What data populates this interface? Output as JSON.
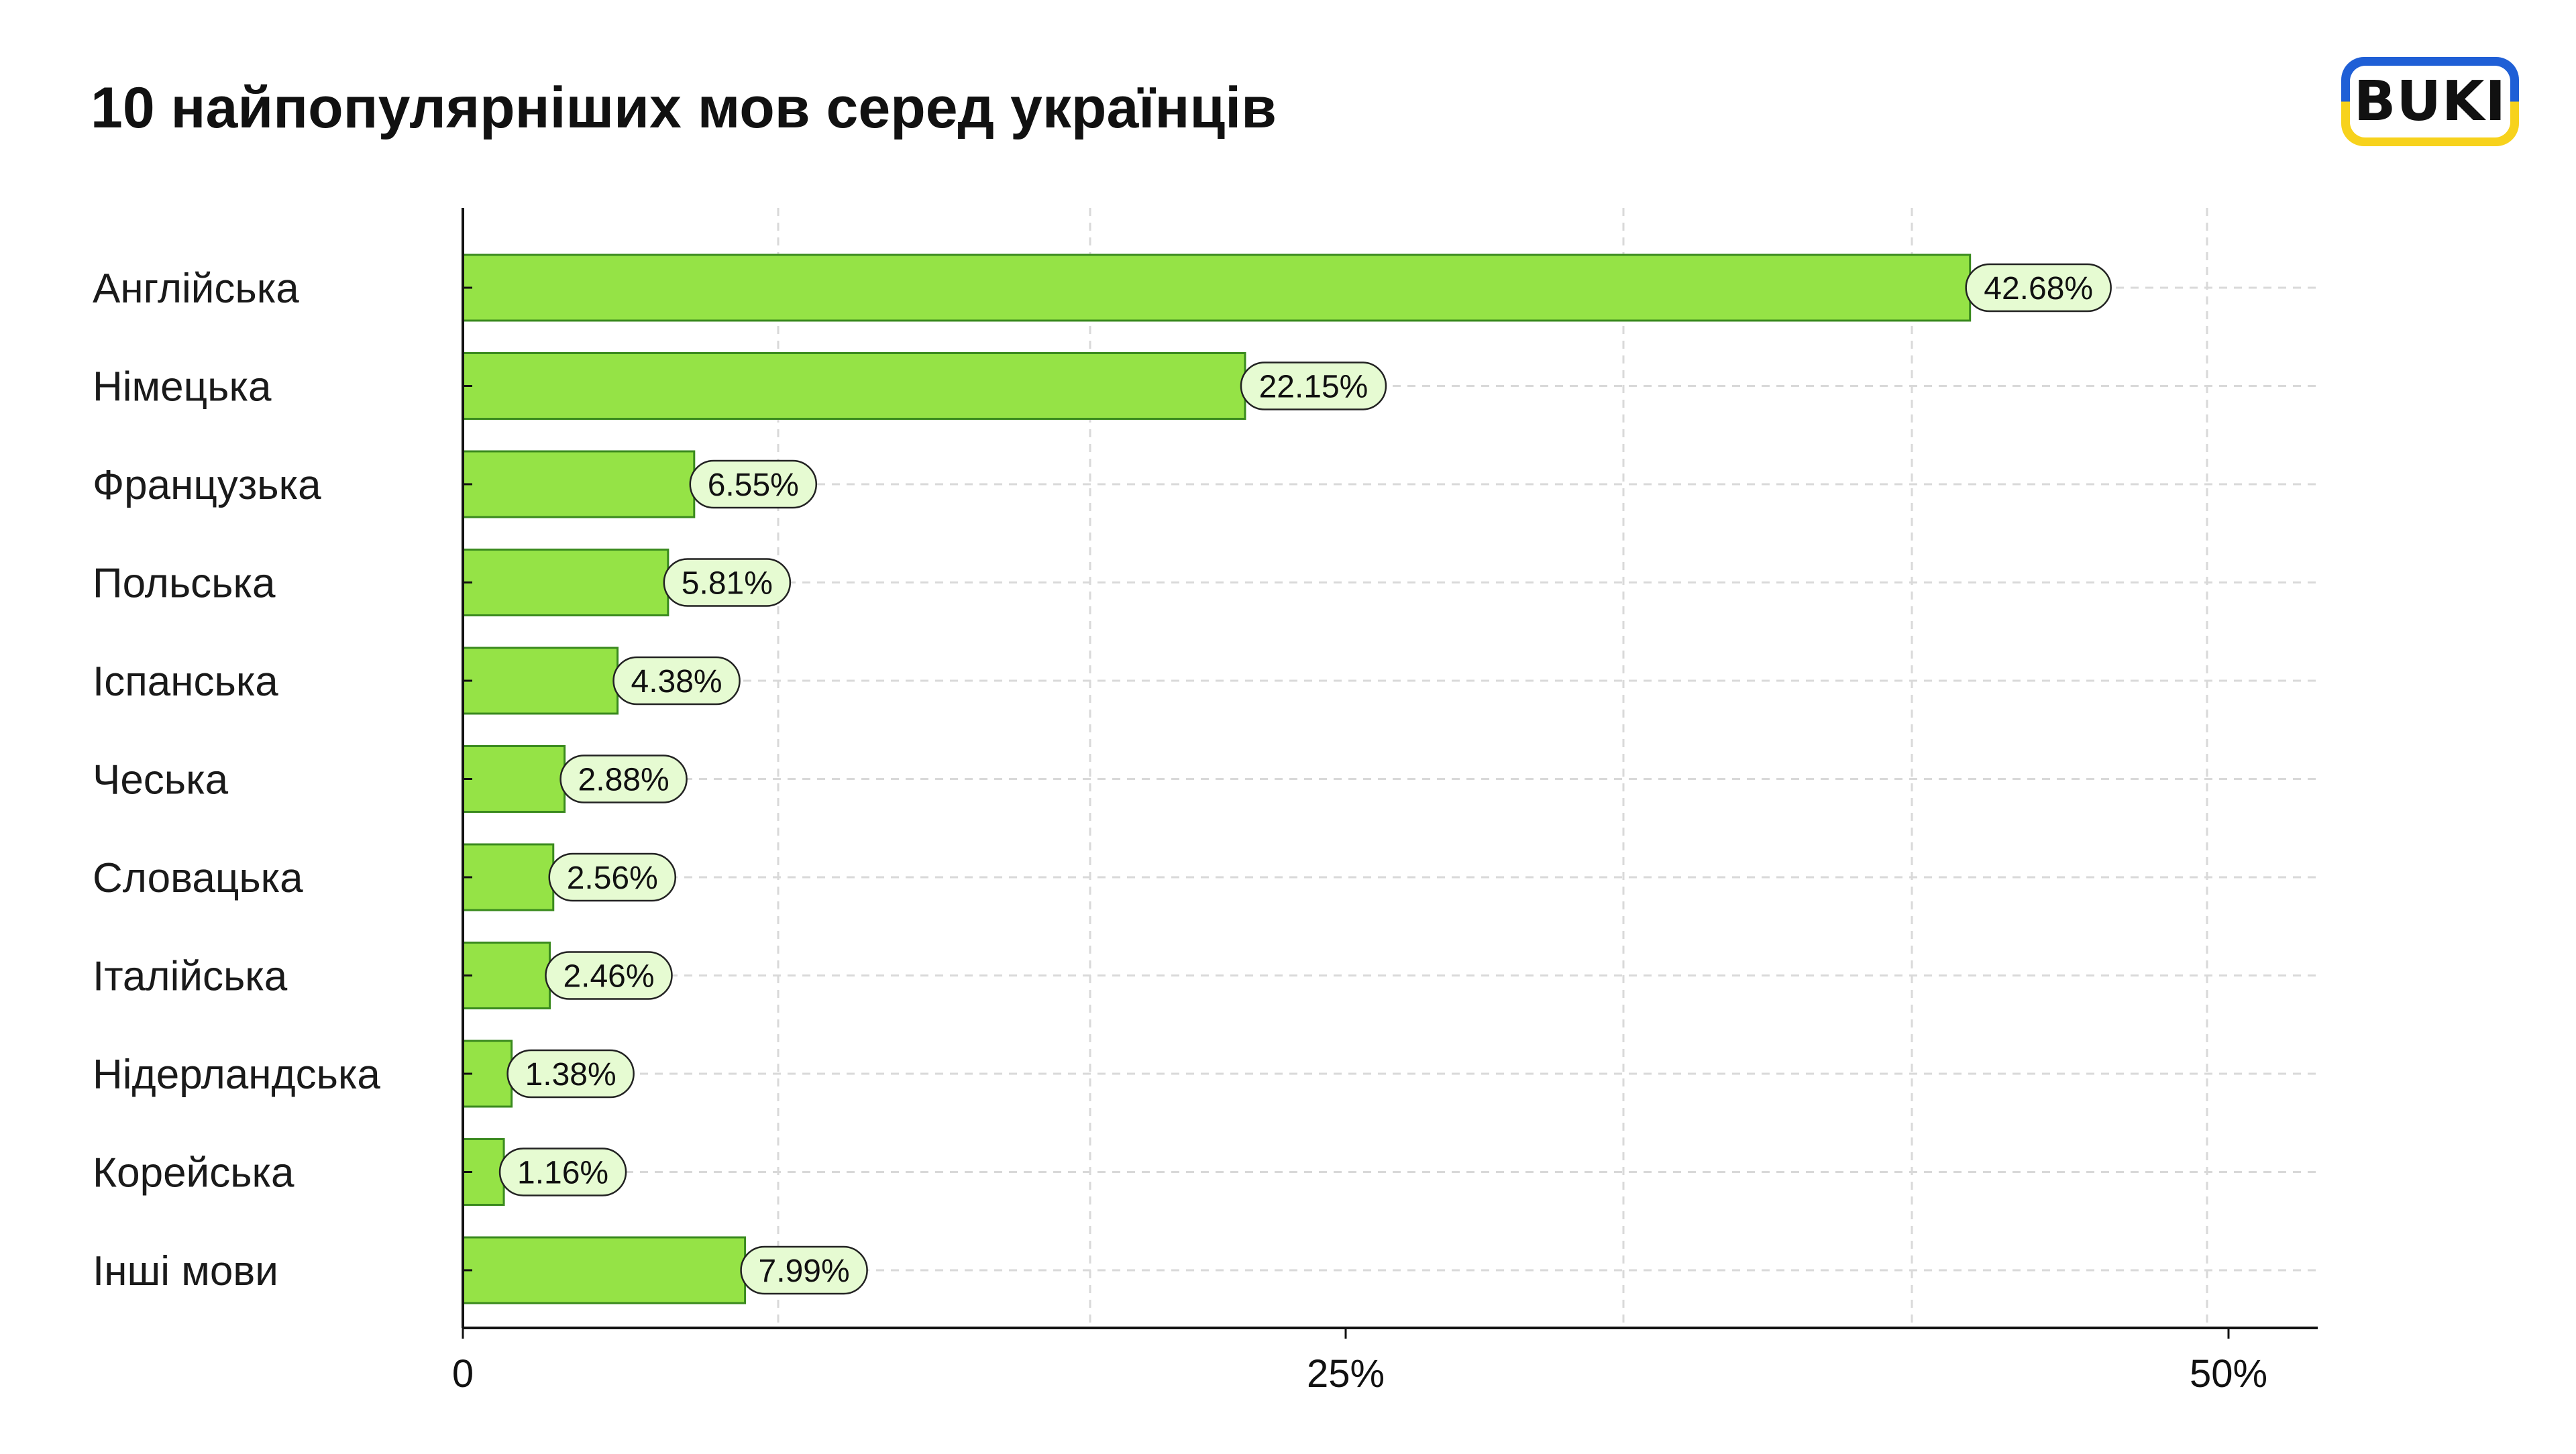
{
  "chart_data": {
    "type": "bar",
    "orientation": "horizontal",
    "title": "10 найпопулярніших мов серед українців",
    "categories": [
      "Англійська",
      "Німецька",
      "Французька",
      "Польська",
      "Іспанська",
      "Чеська",
      "Словацька",
      "Італійська",
      "Нідерландська",
      "Корейська",
      "Інші мови"
    ],
    "values": [
      42.68,
      22.15,
      6.55,
      5.81,
      4.38,
      2.88,
      2.56,
      2.46,
      1.38,
      1.16,
      7.99
    ],
    "value_labels": [
      "42.68%",
      "22.15%",
      "6.55%",
      "5.81%",
      "4.38%",
      "2.88%",
      "2.56%",
      "2.46%",
      "1.38%",
      "1.16%",
      "7.99%"
    ],
    "x_ticks": [
      "0",
      "25%",
      "50%"
    ],
    "xlabel": "",
    "ylabel": "",
    "grid": true,
    "legend": "none",
    "colors": {
      "bar_fill": "#95e346",
      "bar_stroke": "#3a8a1e",
      "label_fill": "#e6fbd2",
      "grid": "#d9d9d9",
      "axis": "#111111"
    }
  },
  "logo": {
    "text": "BUKI",
    "colors": {
      "top": "#1f5fd6",
      "bottom": "#f7d21c"
    }
  }
}
